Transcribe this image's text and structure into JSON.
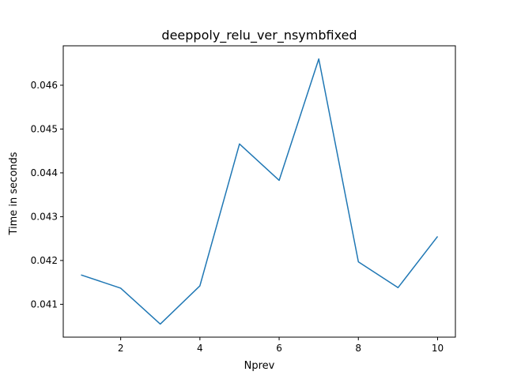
{
  "chart_data": {
    "type": "line",
    "title": "deeppoly_relu_ver_nsymbfixed",
    "xlabel": "Nprev",
    "ylabel": "Time in seconds",
    "x": [
      1,
      2,
      3,
      4,
      5,
      6,
      7,
      8,
      9,
      10
    ],
    "series": [
      {
        "values": [
          0.04167,
          0.04137,
          0.04055,
          0.04142,
          0.04466,
          0.04383,
          0.0466,
          0.04197,
          0.04138,
          0.04255
        ],
        "color": "#1f77b4"
      }
    ],
    "xticks": [
      2,
      4,
      6,
      8,
      10
    ],
    "xtick_labels": [
      "2",
      "4",
      "6",
      "8",
      "10"
    ],
    "yticks": [
      0.041,
      0.042,
      0.043,
      0.044,
      0.045,
      0.046
    ],
    "ytick_labels": [
      "0.041",
      "0.042",
      "0.043",
      "0.044",
      "0.045",
      "0.046"
    ],
    "xlim": [
      0.55,
      10.45
    ],
    "ylim": [
      0.04025,
      0.0469
    ],
    "grid": false,
    "legend": "none"
  }
}
